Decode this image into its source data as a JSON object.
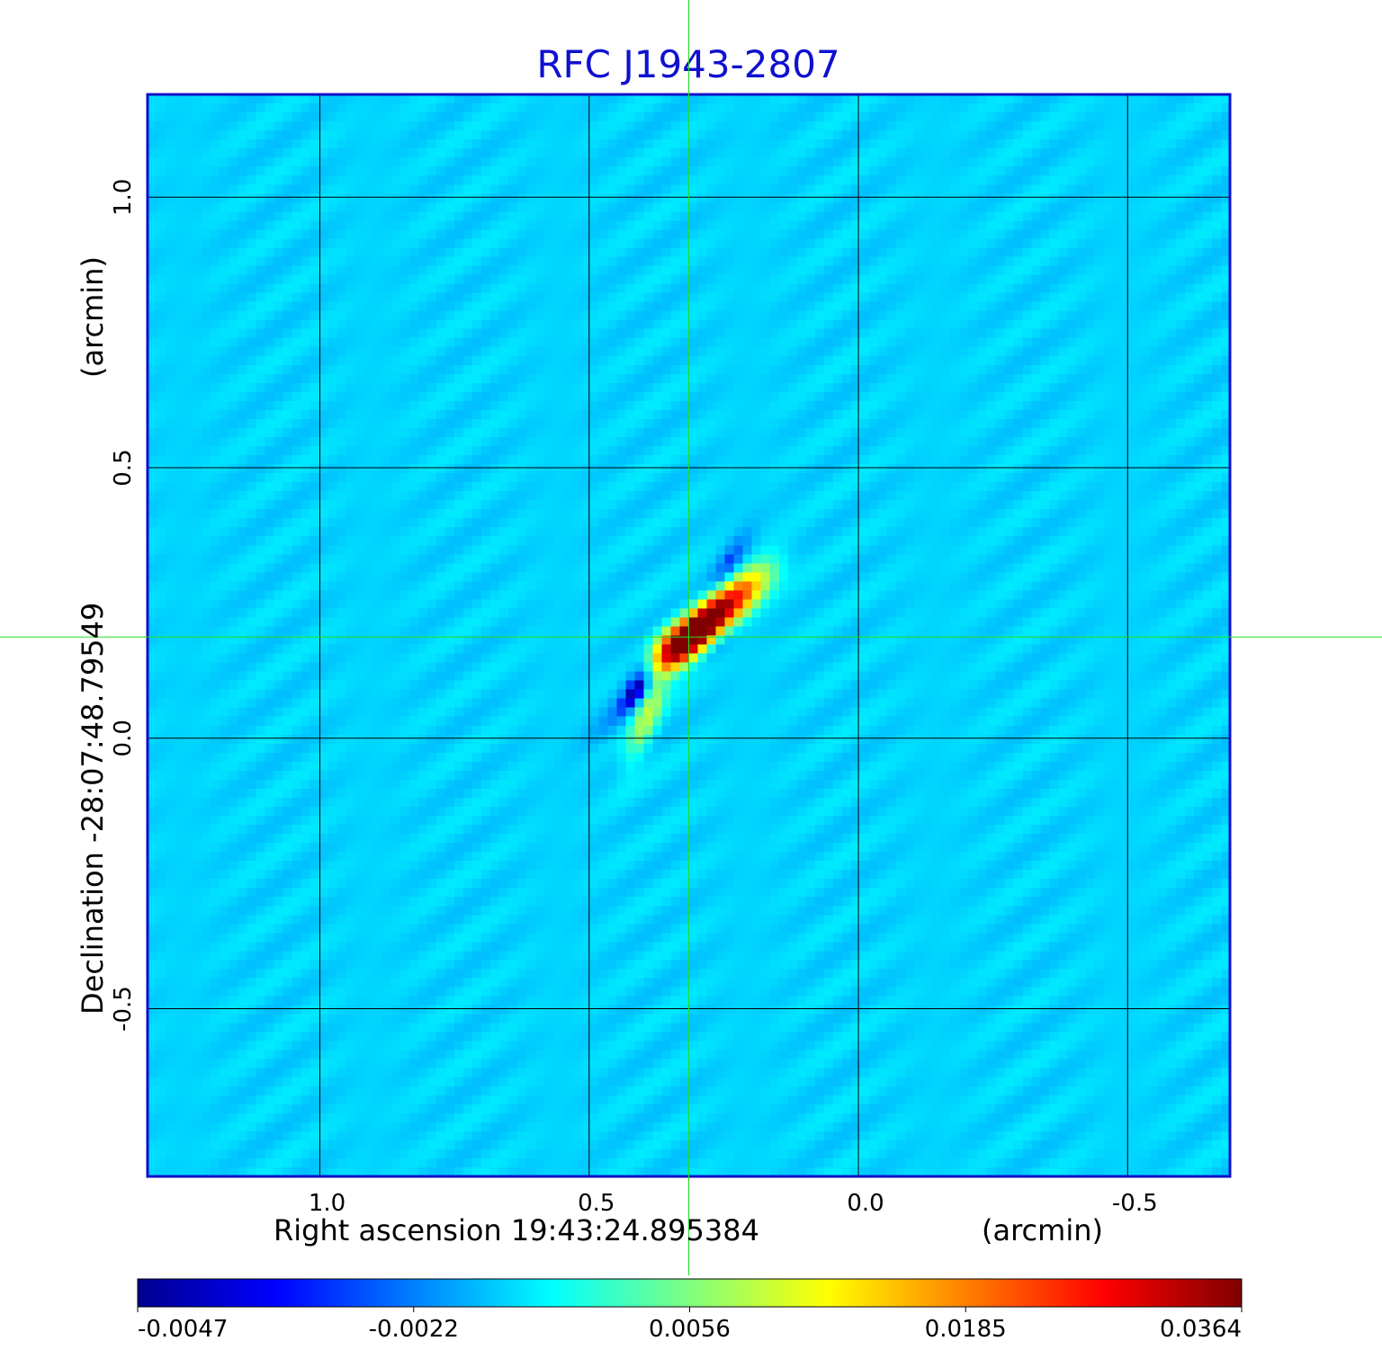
{
  "chart_data": {
    "type": "heatmap",
    "title": "RFC J1943-2807",
    "xlabel": "Right ascension  19:43:24.895384",
    "xunit": "(arcmin)",
    "ylabel": "Declination  -28:07:48.79549",
    "yunit": "(arcmin)",
    "xlim": [
      1.32,
      -0.69
    ],
    "ylim": [
      -0.81,
      1.19
    ],
    "x_ticks": [
      1.0,
      0.5,
      0.0,
      -0.5
    ],
    "x_tick_labels": [
      "1.0",
      "0.5",
      "0.0",
      "-0.5"
    ],
    "y_ticks": [
      1.0,
      0.5,
      0.0,
      -0.5
    ],
    "y_tick_labels": [
      "1.0",
      "0.5",
      "0.0",
      "-0.5"
    ],
    "grid": true,
    "crosshair": {
      "x": 0.315,
      "y": 0.187
    },
    "colorbar": {
      "colormap": "jet",
      "tick_labels": [
        "-0.0047",
        "-0.0022",
        "0.0056",
        "0.0185",
        "0.0364"
      ],
      "tick_values": [
        -0.0047,
        -0.0022,
        0.0056,
        0.0185,
        0.0364
      ]
    },
    "source_components": [
      {
        "x": 0.31,
        "y": 0.19,
        "value": 0.0364,
        "sigma_major": 0.05,
        "sigma_minor": 0.017,
        "pa_deg": 45
      },
      {
        "x": 0.27,
        "y": 0.22,
        "value": 0.025,
        "sigma_major": 0.055,
        "sigma_minor": 0.02,
        "pa_deg": 45
      },
      {
        "x": 0.21,
        "y": 0.27,
        "value": 0.012,
        "sigma_major": 0.045,
        "sigma_minor": 0.02,
        "pa_deg": 45
      },
      {
        "x": 0.345,
        "y": 0.17,
        "value": 0.014,
        "sigma_major": 0.03,
        "sigma_minor": 0.02,
        "pa_deg": 45
      },
      {
        "x": 0.39,
        "y": 0.05,
        "value": 0.008,
        "sigma_major": 0.06,
        "sigma_minor": 0.015,
        "pa_deg": 70
      },
      {
        "x": 0.4,
        "y": 0.11,
        "value": -0.0047,
        "sigma_major": 0.04,
        "sigma_minor": 0.018,
        "pa_deg": 60
      },
      {
        "x": 0.24,
        "y": 0.32,
        "value": -0.0035,
        "sigma_major": 0.05,
        "sigma_minor": 0.015,
        "pa_deg": 60
      },
      {
        "x": 0.26,
        "y": 0.18,
        "value": -0.0028,
        "sigma_major": 0.035,
        "sigma_minor": 0.015,
        "pa_deg": 45
      },
      {
        "x": 0.43,
        "y": 0.06,
        "value": -0.002,
        "sigma_major": 0.08,
        "sigma_minor": 0.015,
        "pa_deg": 45
      }
    ]
  }
}
